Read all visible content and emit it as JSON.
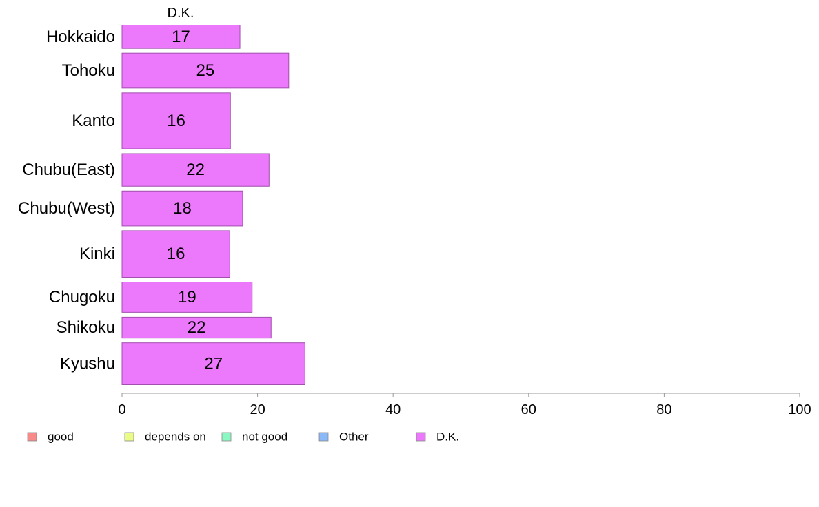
{
  "chart_data": {
    "type": "bar",
    "orientation": "horizontal",
    "title": "",
    "xlabel": "",
    "ylabel": "",
    "series_title": "D.K.",
    "categories": [
      "Hokkaido",
      "Tohoku",
      "Kanto",
      "Chubu(East)",
      "Chubu(West)",
      "Kinki",
      "Chugoku",
      "Shikoku",
      "Kyushu"
    ],
    "category_weights": [
      0.6,
      0.85,
      1.3,
      0.8,
      0.85,
      1.1,
      0.75,
      0.55,
      1.0
    ],
    "series": [
      {
        "name": "D.K.",
        "values": [
          17,
          25,
          16,
          22,
          18,
          16,
          19,
          22,
          27
        ],
        "data_labels": [
          "17",
          "25",
          "16",
          "22",
          "18",
          "16",
          "19",
          "22",
          "27"
        ]
      }
    ],
    "true_values": [
      17.4,
      24.6,
      16.0,
      21.7,
      17.8,
      15.9,
      19.2,
      22.0,
      27.0
    ],
    "xlim": [
      0,
      100
    ],
    "xticks": [
      0,
      20,
      40,
      60,
      80,
      100
    ],
    "xtick_labels": [
      "0",
      "20",
      "40",
      "60",
      "80",
      "100"
    ],
    "grid": false,
    "legend": {
      "position": "bottom-left",
      "items": [
        {
          "label": "good",
          "color": "#f98a8a"
        },
        {
          "label": "depends on",
          "color": "#eafb86"
        },
        {
          "label": "not good",
          "color": "#8af8c1"
        },
        {
          "label": "Other",
          "color": "#8ab9fa"
        },
        {
          "label": "D.K.",
          "color": "#ec78fc"
        }
      ]
    },
    "bar_color": "#ec78fc",
    "bar_stroke": "#a24fae",
    "axis_color": "#999999"
  }
}
